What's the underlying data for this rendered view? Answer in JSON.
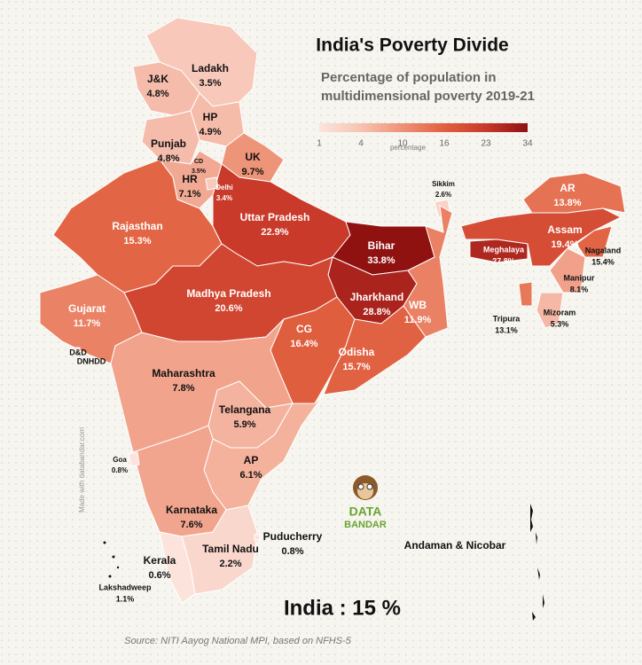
{
  "header": {
    "title": "India's Poverty Divide",
    "subtitle": [
      "Percentage of population in",
      "multidimensional poverty 2019-21"
    ]
  },
  "legend": {
    "title": "percentage",
    "ticks": [
      1,
      4,
      10,
      16,
      23,
      34
    ],
    "colors": [
      "#fce4dc",
      "#f7c3b3",
      "#ee9175",
      "#e0603f",
      "#c9392a",
      "#8e1111"
    ]
  },
  "regions": [
    {
      "name": "Ladakh",
      "value": 3.5,
      "value_label": "3.5%"
    },
    {
      "name": "J&K",
      "value": 4.8,
      "value_label": "4.8%"
    },
    {
      "name": "HP",
      "value": 4.9,
      "value_label": "4.9%"
    },
    {
      "name": "Punjab",
      "value": 4.8,
      "value_label": "4.8%"
    },
    {
      "name": "CD",
      "value": 3.5,
      "value_label": "3.5%"
    },
    {
      "name": "UK",
      "value": 9.7,
      "value_label": "9.7%"
    },
    {
      "name": "HR",
      "value": 7.1,
      "value_label": "7.1%"
    },
    {
      "name": "Rajasthan",
      "value": 15.3,
      "value_label": "15.3%"
    },
    {
      "name": "Uttar Pradesh",
      "value": 22.9,
      "value_label": "22.9%"
    },
    {
      "name": "Delhi",
      "value": 3.4,
      "value_label": "3.4%"
    },
    {
      "name": "Bihar",
      "value": 33.8,
      "value_label": "33.8%"
    },
    {
      "name": "Sikkim",
      "value": 2.6,
      "value_label": "2.6%"
    },
    {
      "name": "Jharkhand",
      "value": 28.8,
      "value_label": "28.8%"
    },
    {
      "name": "WB",
      "value": 11.9,
      "value_label": "11.9%"
    },
    {
      "name": "Madhya Pradesh",
      "value": 20.6,
      "value_label": "20.6%"
    },
    {
      "name": "Gujarat",
      "value": 11.7,
      "value_label": "11.7%"
    },
    {
      "name": "CG",
      "value": 16.4,
      "value_label": "16.4%"
    },
    {
      "name": "Odisha",
      "value": 15.7,
      "value_label": "15.7%"
    },
    {
      "name": "Maharashtra",
      "value": 7.8,
      "value_label": "7.8%"
    },
    {
      "name": "Telangana",
      "value": 5.9,
      "value_label": "5.9%"
    },
    {
      "name": "AP",
      "value": 6.1,
      "value_label": "6.1%"
    },
    {
      "name": "Karnataka",
      "value": 7.6,
      "value_label": "7.6%"
    },
    {
      "name": "Goa",
      "value": 0.8,
      "value_label": "0.8%"
    },
    {
      "name": "Kerala",
      "value": 0.6,
      "value_label": "0.6%"
    },
    {
      "name": "Tamil Nadu",
      "value": 2.2,
      "value_label": "2.2%"
    },
    {
      "name": "Puducherry",
      "value": 0.8,
      "value_label": "0.8%"
    },
    {
      "name": "Lakshadweep",
      "value": 1.1,
      "value_label": "1.1%"
    },
    {
      "name": "AR",
      "value": 13.8,
      "value_label": "13.8%"
    },
    {
      "name": "Assam",
      "value": 19.4,
      "value_label": "19.4%"
    },
    {
      "name": "Meghalaya",
      "value": 27.8,
      "value_label": "27.8%"
    },
    {
      "name": "Nagaland",
      "value": 15.4,
      "value_label": "15.4%"
    },
    {
      "name": "Manipur",
      "value": 8.1,
      "value_label": "8.1%"
    },
    {
      "name": "Mizoram",
      "value": 5.3,
      "value_label": "5.3%"
    },
    {
      "name": "Tripura",
      "value": 13.1,
      "value_label": "13.1%"
    },
    {
      "name": "D&D",
      "subname": "DNHDD"
    },
    {
      "name": "Andaman & Nicobar"
    }
  ],
  "summary": "India : 15 %",
  "source": "Source: NITI Aayog National MPI, based on NFHS-5",
  "watermark": "Made with databandar.com",
  "logo": [
    "DATA",
    "BANDAR"
  ]
}
